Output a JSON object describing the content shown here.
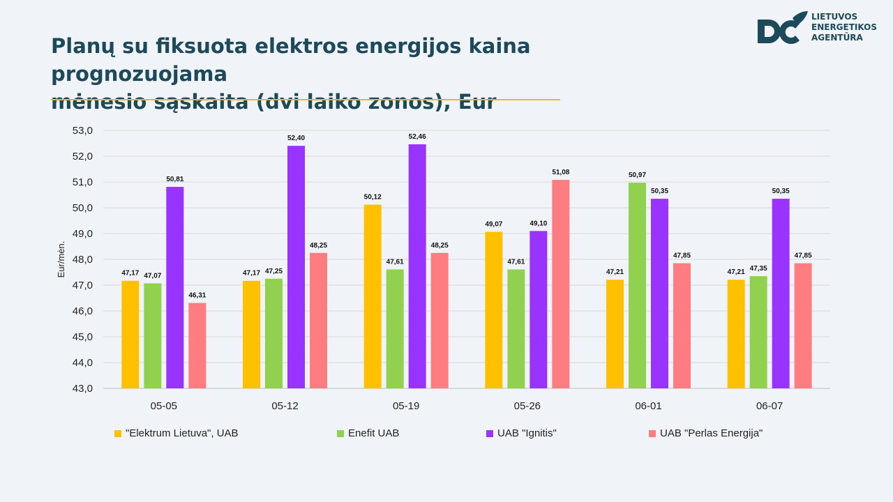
{
  "title": {
    "line1": "Planų su fiksuota elektros energijos kaina prognozuojama",
    "line2": "mėnesio sąskaita (dvi laiko zonos), Eur"
  },
  "logo": {
    "icon": "lea-logo-icon",
    "line1": "LIETUVOS",
    "line2": "ENERGETIKOS",
    "line3": "AGENTŪRA",
    "color": "#1c4a5a"
  },
  "colors": {
    "background": "#f0f3f7",
    "accent_line": "#f2b520",
    "title": "#1c4a5a"
  },
  "chart_data": {
    "type": "bar",
    "title": "",
    "xlabel": "",
    "ylabel": "Eur/mėn.",
    "ylim": [
      43,
      53
    ],
    "yticks": [
      "43,0",
      "44,0",
      "45,0",
      "46,0",
      "47,0",
      "48,0",
      "49,0",
      "50,0",
      "51,0",
      "52,0",
      "53,0"
    ],
    "grid": true,
    "legend_position": "bottom",
    "categories": [
      "05-05",
      "05-12",
      "05-19",
      "05-26",
      "06-01",
      "06-07"
    ],
    "series": [
      {
        "name": "\"Elektrum Lietuva\", UAB",
        "color": "#ffc000",
        "values": [
          47.17,
          47.17,
          50.12,
          49.07,
          47.21,
          47.21
        ],
        "labels": [
          "47,17",
          "47,17",
          "50,12",
          "49,07",
          "47,21",
          "47,21"
        ]
      },
      {
        "name": "Enefit UAB",
        "color": "#92d050",
        "values": [
          47.07,
          47.25,
          47.61,
          47.61,
          50.97,
          47.35
        ],
        "labels": [
          "47,07",
          "47,25",
          "47,61",
          "47,61",
          "50,97",
          "47,35"
        ]
      },
      {
        "name": "UAB \"Ignitis\"",
        "color": "#9933ff",
        "values": [
          50.81,
          52.4,
          52.46,
          49.1,
          50.35,
          50.35
        ],
        "labels": [
          "50,81",
          "52,40",
          "52,46",
          "49,10",
          "50,35",
          "50,35"
        ]
      },
      {
        "name": "UAB \"Perlas Energija\"",
        "color": "#ff7c80",
        "values": [
          46.31,
          48.25,
          48.25,
          51.08,
          47.85,
          47.85
        ],
        "labels": [
          "46,31",
          "48,25",
          "48,25",
          "51,08",
          "47,85",
          "47,85"
        ]
      }
    ]
  }
}
